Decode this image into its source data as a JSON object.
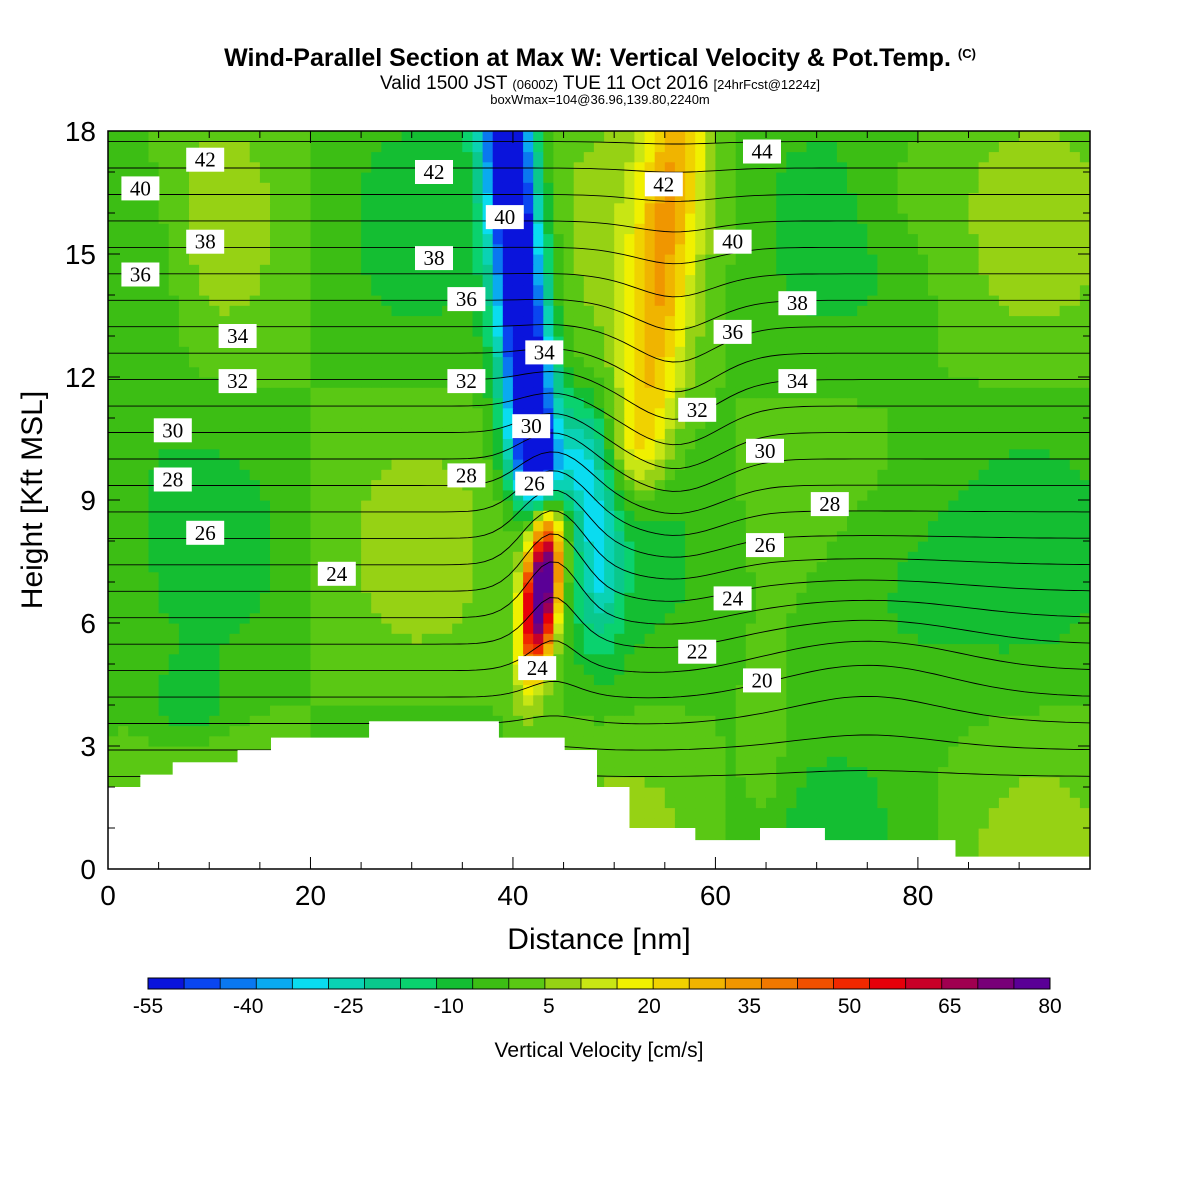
{
  "title": {
    "main": "Wind-Parallel Section at Max W: Vertical Velocity & Pot.Temp.",
    "copyright": "(C)",
    "valid_a": "Valid 1500 JST",
    "valid_b": "(0600Z)",
    "valid_c": "TUE 11 Oct 2016",
    "valid_d": "[24hrFcst@1224z]",
    "box": "boxWmax=104@36.96,139.80,2240m"
  },
  "chart_data": {
    "type": "heatmap",
    "xlabel": "Distance [nm]",
    "ylabel": "Height [Kft MSL]",
    "xlim": [
      0,
      97
    ],
    "ylim": [
      0,
      18
    ],
    "xticks": [
      0,
      20,
      40,
      60,
      80
    ],
    "yticks": [
      0,
      3,
      6,
      9,
      12,
      15,
      18
    ],
    "colorbar": {
      "label": "Vertical Velocity [cm/s]",
      "min": -55,
      "max": 80,
      "step": 5,
      "tick_values": [
        -55,
        -40,
        -25,
        -10,
        5,
        20,
        35,
        50,
        65,
        80
      ],
      "colors": [
        "#0a14dc",
        "#0a46f0",
        "#0a78f0",
        "#0aaaf0",
        "#0adcf0",
        "#0ad2b4",
        "#0ac88c",
        "#0ad26e",
        "#14be32",
        "#3cbe14",
        "#5ac814",
        "#96d214",
        "#c8e614",
        "#f0f000",
        "#f0d200",
        "#f0b400",
        "#f09600",
        "#f07800",
        "#f05000",
        "#f02800",
        "#e6000a",
        "#c80028",
        "#a00050",
        "#780078",
        "#5a0096"
      ]
    },
    "theta_contours": {
      "units": "C",
      "labels": [
        {
          "text": "42",
          "x": 9.6,
          "y": 17.3
        },
        {
          "text": "40",
          "x": 3.2,
          "y": 16.6
        },
        {
          "text": "38",
          "x": 9.6,
          "y": 15.3
        },
        {
          "text": "36",
          "x": 3.2,
          "y": 14.5
        },
        {
          "text": "34",
          "x": 12.8,
          "y": 13.0
        },
        {
          "text": "32",
          "x": 12.8,
          "y": 11.9
        },
        {
          "text": "30",
          "x": 6.4,
          "y": 10.7
        },
        {
          "text": "28",
          "x": 6.4,
          "y": 9.5
        },
        {
          "text": "26",
          "x": 9.6,
          "y": 8.2
        },
        {
          "text": "24",
          "x": 22.6,
          "y": 7.2
        },
        {
          "text": "42",
          "x": 32.2,
          "y": 17.0
        },
        {
          "text": "40",
          "x": 39.2,
          "y": 15.9
        },
        {
          "text": "38",
          "x": 32.2,
          "y": 14.9
        },
        {
          "text": "36",
          "x": 35.4,
          "y": 13.9
        },
        {
          "text": "34",
          "x": 43.1,
          "y": 12.6
        },
        {
          "text": "32",
          "x": 35.4,
          "y": 11.9
        },
        {
          "text": "30",
          "x": 41.8,
          "y": 10.8
        },
        {
          "text": "28",
          "x": 35.4,
          "y": 9.6
        },
        {
          "text": "26",
          "x": 42.1,
          "y": 9.4
        },
        {
          "text": "24",
          "x": 42.4,
          "y": 4.9
        },
        {
          "text": "42",
          "x": 54.9,
          "y": 16.7
        },
        {
          "text": "44",
          "x": 64.6,
          "y": 17.5
        },
        {
          "text": "40",
          "x": 61.7,
          "y": 15.3
        },
        {
          "text": "38",
          "x": 68.1,
          "y": 13.8
        },
        {
          "text": "36",
          "x": 61.7,
          "y": 13.1
        },
        {
          "text": "34",
          "x": 68.1,
          "y": 11.9
        },
        {
          "text": "32",
          "x": 58.2,
          "y": 11.2
        },
        {
          "text": "30",
          "x": 64.9,
          "y": 10.2
        },
        {
          "text": "28",
          "x": 71.3,
          "y": 8.9
        },
        {
          "text": "26",
          "x": 64.9,
          "y": 7.9
        },
        {
          "text": "24",
          "x": 61.7,
          "y": 6.6
        },
        {
          "text": "22",
          "x": 58.2,
          "y": 5.3
        },
        {
          "text": "20",
          "x": 64.6,
          "y": 4.6
        }
      ]
    },
    "terrain": [
      {
        "x": 0,
        "h": 2.0
      },
      {
        "x": 3.2,
        "h": 2.0
      },
      {
        "x": 3.2,
        "h": 2.3
      },
      {
        "x": 6.4,
        "h": 2.3
      },
      {
        "x": 6.4,
        "h": 2.6
      },
      {
        "x": 12.8,
        "h": 2.6
      },
      {
        "x": 12.8,
        "h": 2.9
      },
      {
        "x": 16.1,
        "h": 2.9
      },
      {
        "x": 16.1,
        "h": 3.2
      },
      {
        "x": 25.8,
        "h": 3.2
      },
      {
        "x": 25.8,
        "h": 3.6
      },
      {
        "x": 38.6,
        "h": 3.6
      },
      {
        "x": 38.6,
        "h": 3.2
      },
      {
        "x": 45.1,
        "h": 3.2
      },
      {
        "x": 45.1,
        "h": 2.9
      },
      {
        "x": 48.3,
        "h": 2.9
      },
      {
        "x": 48.3,
        "h": 2.0
      },
      {
        "x": 51.5,
        "h": 2.0
      },
      {
        "x": 51.5,
        "h": 1.0
      },
      {
        "x": 58.0,
        "h": 1.0
      },
      {
        "x": 58.0,
        "h": 0.7
      },
      {
        "x": 64.4,
        "h": 0.7
      },
      {
        "x": 64.4,
        "h": 1.0
      },
      {
        "x": 70.8,
        "h": 1.0
      },
      {
        "x": 70.8,
        "h": 0.7
      },
      {
        "x": 83.7,
        "h": 0.7
      },
      {
        "x": 83.7,
        "h": 0.3
      },
      {
        "x": 97,
        "h": 0.3
      }
    ],
    "features": [
      {
        "kind": "updraft_max",
        "x": 42.5,
        "y": 6.8,
        "w": 80
      },
      {
        "kind": "downdraft_min",
        "x": 42.5,
        "y": 16.5,
        "w": -55
      }
    ]
  }
}
